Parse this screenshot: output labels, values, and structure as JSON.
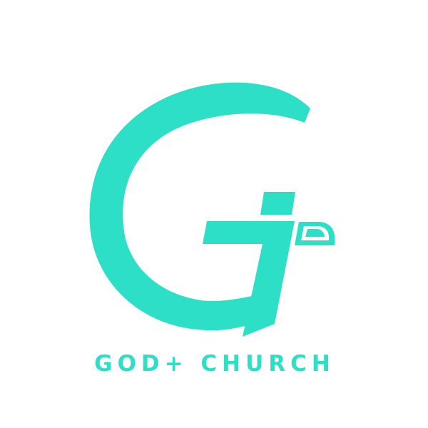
{
  "brand": {
    "name": "GOD+ CHURCH",
    "accent_color": "#2ddfc7",
    "background_color": "#ffffff"
  },
  "logo": {
    "icon": "g-monogram-logo-icon"
  }
}
